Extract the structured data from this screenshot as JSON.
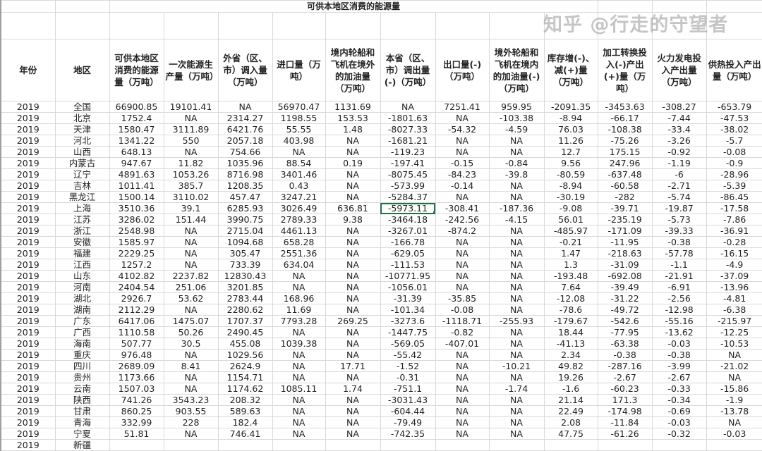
{
  "sheet": {
    "title": "可供本地区消费的能源量",
    "columns": [
      "年份",
      "地区",
      "可供本地区消费的能源量（万吨）",
      "一次能源生产量（万吨）",
      "外省（区、市）调入量（万吨）",
      "进口量（万吨）",
      "境内轮船和飞机在境外的加油量（万吨）",
      "本省（区、市）调出量(-)（万吨）",
      "出口量(-)（万吨）",
      "境外轮船和飞机在境内的加油量(-)（万吨）",
      "库存增(-)、减(+)量（万吨）",
      "加工转换投入(-)产出(+)量（万吨）",
      "火力发电投入产出量（万吨）",
      "供热投入产出量（万吨）"
    ],
    "selected_cell": {
      "row": "上海",
      "column": "本省（区、市）调出量(-)（万吨）",
      "value": "-5973.11"
    },
    "selection_color": "#217346",
    "rows": [
      [
        "2019",
        "全国",
        "66900.85",
        "19101.41",
        "NA",
        "56970.47",
        "1131.69",
        "NA",
        "7251.41",
        "959.95",
        "-2091.35",
        "-3453.63",
        "-308.27",
        "-653.79"
      ],
      [
        "2019",
        "北京",
        "1752.4",
        "NA",
        "2314.27",
        "1198.55",
        "153.53",
        "-1801.63",
        "NA",
        "-103.38",
        "-8.94",
        "-66.17",
        "-7.44",
        "-47.53"
      ],
      [
        "2019",
        "天津",
        "1580.47",
        "3111.89",
        "6421.76",
        "55.55",
        "1.48",
        "-8027.33",
        "-54.32",
        "-4.59",
        "76.03",
        "-108.38",
        "-33.4",
        "-38.02"
      ],
      [
        "2019",
        "河北",
        "1341.22",
        "550",
        "2057.18",
        "403.98",
        "NA",
        "-1681.21",
        "NA",
        "NA",
        "11.26",
        "-75.26",
        "-3.26",
        "-5.7"
      ],
      [
        "2019",
        "山西",
        "648.13",
        "NA",
        "754.66",
        "NA",
        "NA",
        "-119.23",
        "NA",
        "NA",
        "12.7",
        "175.15",
        "-0.92",
        "-0.08"
      ],
      [
        "2019",
        "内蒙古",
        "947.67",
        "11.82",
        "1035.96",
        "88.54",
        "0.19",
        "-197.41",
        "-0.15",
        "-0.84",
        "9.56",
        "247.96",
        "-1.19",
        "-0.9"
      ],
      [
        "2019",
        "辽宁",
        "4891.63",
        "1053.26",
        "8716.98",
        "3401.46",
        "NA",
        "-8075.45",
        "-84.23",
        "-39.8",
        "-80.59",
        "-637.48",
        "-6",
        "-28.96"
      ],
      [
        "2019",
        "吉林",
        "1011.41",
        "385.7",
        "1208.35",
        "0.43",
        "NA",
        "-573.99",
        "-0.14",
        "NA",
        "-8.94",
        "-60.58",
        "-2.71",
        "-5.39"
      ],
      [
        "2019",
        "黑龙江",
        "1500.14",
        "3110.02",
        "457.47",
        "3247.21",
        "NA",
        "-5284.37",
        "NA",
        "NA",
        "-30.19",
        "-282",
        "-5.74",
        "-86.45"
      ],
      [
        "2019",
        "上海",
        "3510.36",
        "39.1",
        "6285.93",
        "3026.49",
        "636.81",
        "-5973.11",
        "-308.41",
        "-187.36",
        "-9.08",
        "-39.71",
        "-19.87",
        "-17.58"
      ],
      [
        "2019",
        "江苏",
        "3286.02",
        "151.44",
        "3990.75",
        "2789.33",
        "9.38",
        "-3464.18",
        "-242.56",
        "-4.15",
        "56.01",
        "-235.19",
        "-5.73",
        "-7.86"
      ],
      [
        "2019",
        "浙江",
        "2548.98",
        "NA",
        "2715.04",
        "4461.13",
        "NA",
        "-3267.01",
        "-874.2",
        "NA",
        "-485.97",
        "-171.09",
        "-39.33",
        "-36.91"
      ],
      [
        "2019",
        "安徽",
        "1585.97",
        "NA",
        "1094.68",
        "658.28",
        "NA",
        "-166.78",
        "NA",
        "NA",
        "-0.21",
        "-11.95",
        "-0.38",
        "-0.28"
      ],
      [
        "2019",
        "福建",
        "2229.25",
        "NA",
        "305.47",
        "2551.36",
        "NA",
        "-629.05",
        "NA",
        "NA",
        "1.47",
        "-218.63",
        "-57.78",
        "-16.15"
      ],
      [
        "2019",
        "江西",
        "1257.2",
        "NA",
        "733.39",
        "634.04",
        "NA",
        "-111.53",
        "NA",
        "NA",
        "1.3",
        "-31.09",
        "-1.1",
        "-4.9"
      ],
      [
        "2019",
        "山东",
        "4102.82",
        "2237.82",
        "12830.43",
        "NA",
        "NA",
        "-10771.95",
        "NA",
        "NA",
        "-193.48",
        "-692.08",
        "-21.91",
        "-37.09"
      ],
      [
        "2019",
        "河南",
        "2404.54",
        "251.06",
        "3201.85",
        "NA",
        "NA",
        "-1056.01",
        "NA",
        "NA",
        "7.64",
        "-39.49",
        "-6.91",
        "-13.96"
      ],
      [
        "2019",
        "湖北",
        "2926.7",
        "53.62",
        "2783.44",
        "168.96",
        "NA",
        "-31.39",
        "-35.85",
        "NA",
        "-12.08",
        "-31.22",
        "-2.56",
        "-4.81"
      ],
      [
        "2019",
        "湖南",
        "2112.29",
        "NA",
        "2280.62",
        "11.69",
        "NA",
        "-101.34",
        "-0.08",
        "NA",
        "-78.6",
        "-49.72",
        "-12.98",
        "-6.38"
      ],
      [
        "2019",
        "广东",
        "6417.06",
        "1475.07",
        "1707.37",
        "7793.28",
        "269.25",
        "-3273.6",
        "-1118.71",
        "-255.93",
        "-179.67",
        "-542.6",
        "-55.16",
        "-215.97"
      ],
      [
        "2019",
        "广西",
        "1110.58",
        "50.26",
        "2490.45",
        "NA",
        "NA",
        "-1447.75",
        "-0.82",
        "NA",
        "18.44",
        "-77.95",
        "-13.62",
        "-12.25"
      ],
      [
        "2019",
        "海南",
        "507.77",
        "30.5",
        "455.08",
        "1039.38",
        "NA",
        "-569.05",
        "-407.01",
        "NA",
        "-41.13",
        "-63.38",
        "-0.03",
        "-10.53"
      ],
      [
        "2019",
        "重庆",
        "976.48",
        "NA",
        "1029.56",
        "NA",
        "NA",
        "-55.42",
        "NA",
        "NA",
        "2.34",
        "-0.38",
        "-0.38",
        "NA"
      ],
      [
        "2019",
        "四川",
        "2689.09",
        "8.41",
        "2624.9",
        "NA",
        "17.71",
        "-1.52",
        "NA",
        "-10.21",
        "49.82",
        "-287.16",
        "-3.99",
        "-21.02"
      ],
      [
        "2019",
        "贵州",
        "1173.66",
        "NA",
        "1154.71",
        "NA",
        "NA",
        "-0.31",
        "NA",
        "NA",
        "19.26",
        "-2.67",
        "-2.67",
        "NA"
      ],
      [
        "2019",
        "云南",
        "1507.03",
        "NA",
        "1174.62",
        "1085.11",
        "1.74",
        "-751.1",
        "NA",
        "-1.74",
        "-1.6",
        "-60.23",
        "-0.33",
        "-15.86"
      ],
      [
        "2019",
        "陕西",
        "741.26",
        "3543.23",
        "208.32",
        "NA",
        "NA",
        "-3031.43",
        "NA",
        "NA",
        "21.14",
        "171.3",
        "-0.34",
        "-1.9"
      ],
      [
        "2019",
        "甘肃",
        "860.25",
        "903.55",
        "589.63",
        "NA",
        "NA",
        "-604.44",
        "NA",
        "NA",
        "22.49",
        "-174.98",
        "-0.69",
        "-13.78"
      ],
      [
        "2019",
        "青海",
        "332.99",
        "228",
        "182.4",
        "NA",
        "NA",
        "-79.49",
        "NA",
        "NA",
        "2.08",
        "-11.84",
        "-0.03",
        "NA"
      ],
      [
        "2019",
        "宁夏",
        "51.81",
        "NA",
        "746.41",
        "NA",
        "NA",
        "-742.35",
        "NA",
        "NA",
        "47.75",
        "-61.26",
        "-0.32",
        "-0.03"
      ],
      [
        "2019",
        "新疆",
        "",
        "",
        "",
        "",
        "",
        "",
        "",
        "",
        "",
        "",
        "",
        ""
      ]
    ]
  },
  "watermark": "知乎 @行走的守望者"
}
